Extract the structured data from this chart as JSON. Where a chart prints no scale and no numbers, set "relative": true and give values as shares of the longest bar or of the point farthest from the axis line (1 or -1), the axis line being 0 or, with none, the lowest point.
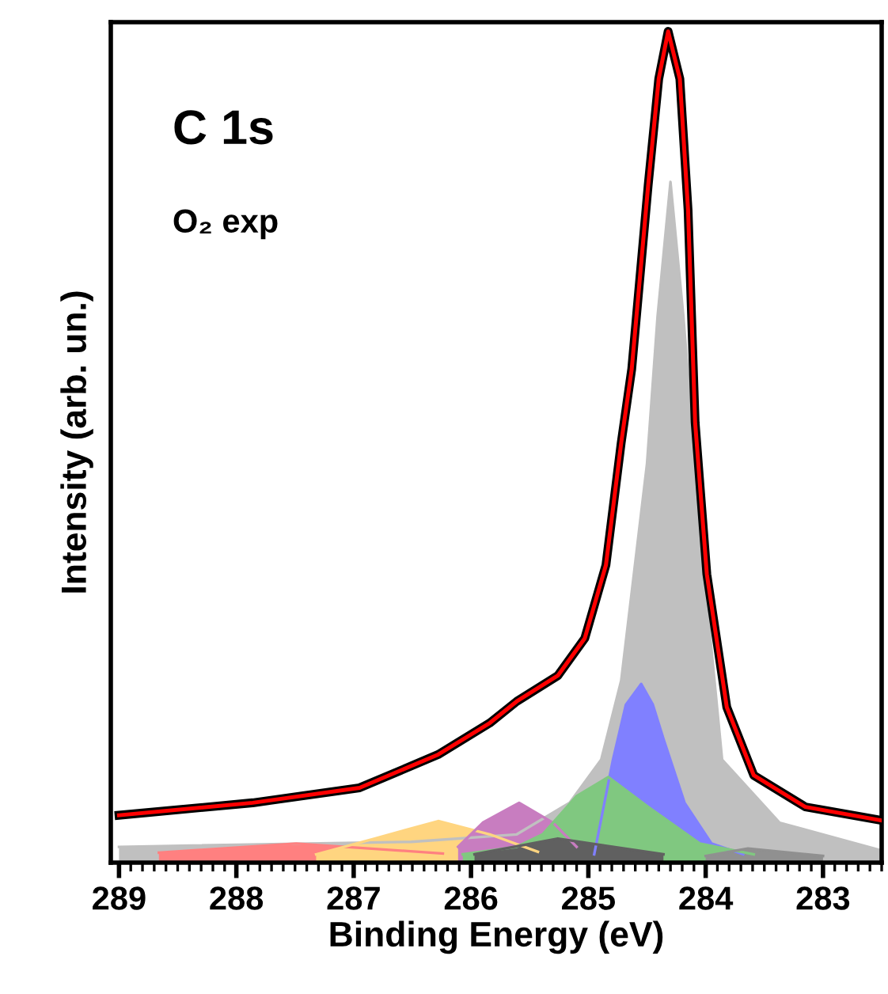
{
  "chart_data": {
    "type": "area",
    "relative": true,
    "xlabel": "Binding Energy (eV)",
    "ylabel": "Intensity (arb. un.)",
    "annotations": [
      "C 1s",
      "O₂ exp"
    ],
    "xlim": [
      289.07,
      282.5
    ],
    "xticks": [
      289,
      288,
      287,
      286,
      285,
      284,
      283
    ],
    "tick_labels": "x",
    "grid": false,
    "legend": false,
    "series": [
      {
        "color": "#c0c0c0",
        "x": [
          289.0,
          286.51,
          285.61,
          285.16,
          284.89,
          284.72,
          284.5,
          284.41,
          284.3,
          284.19,
          284.09,
          283.99,
          283.86,
          283.37,
          282.51
        ],
        "values": [
          0.019,
          0.025,
          0.034,
          0.072,
          0.124,
          0.219,
          0.48,
          0.657,
          0.819,
          0.657,
          0.48,
          0.314,
          0.124,
          0.048,
          0.015
        ]
      },
      {
        "color": "#ff8080",
        "x": [
          288.66,
          287.49,
          286.24
        ],
        "values": [
          0.012,
          0.023,
          0.011
        ]
      },
      {
        "color": "#ffd580",
        "x": [
          287.32,
          286.82,
          286.28,
          285.84,
          285.43
        ],
        "values": [
          0.01,
          0.029,
          0.05,
          0.034,
          0.013
        ]
      },
      {
        "color": "#c87dc0",
        "x": [
          286.11,
          285.9,
          285.59,
          285.3,
          285.1
        ],
        "values": [
          0.019,
          0.048,
          0.072,
          0.048,
          0.019
        ]
      },
      {
        "color": "#8080ff",
        "x": [
          284.95,
          284.79,
          284.68,
          284.55,
          284.45,
          284.36,
          284.18,
          283.95,
          283.68
        ],
        "values": [
          0.01,
          0.124,
          0.19,
          0.215,
          0.19,
          0.149,
          0.072,
          0.023,
          0.01
        ]
      },
      {
        "color": "#80c880",
        "x": [
          286.07,
          285.61,
          285.39,
          285.1,
          284.83,
          284.49,
          284.05,
          283.59
        ],
        "values": [
          0.01,
          0.019,
          0.034,
          0.08,
          0.103,
          0.067,
          0.023,
          0.01
        ]
      },
      {
        "color": "#606060",
        "x": [
          285.97,
          285.26,
          284.36
        ],
        "values": [
          0.01,
          0.029,
          0.01
        ]
      },
      {
        "color": "#909090",
        "x": [
          284.0,
          283.64,
          283.0
        ],
        "values": [
          0.008,
          0.017,
          0.008
        ]
      },
      {
        "type": "line",
        "color": "#000000",
        "x": [
          289.0,
          287.86,
          286.95,
          286.28,
          285.84,
          285.61,
          285.26,
          285.03,
          284.85,
          284.72,
          284.63,
          284.49,
          284.4,
          284.32,
          284.22,
          284.15,
          284.09,
          283.99,
          283.82,
          283.59,
          283.15,
          282.51
        ],
        "values": [
          0.057,
          0.072,
          0.09,
          0.13,
          0.168,
          0.194,
          0.225,
          0.27,
          0.358,
          0.505,
          0.594,
          0.815,
          0.943,
          1.0,
          0.943,
          0.785,
          0.53,
          0.347,
          0.187,
          0.105,
          0.067,
          0.051
        ]
      },
      {
        "type": "line",
        "color": "#ff0000",
        "x": [
          289.0,
          287.86,
          286.95,
          286.28,
          285.84,
          285.61,
          285.26,
          285.03,
          284.85,
          284.72,
          284.63,
          284.49,
          284.4,
          284.32,
          284.22,
          284.15,
          284.09,
          283.99,
          283.82,
          283.59,
          283.15,
          282.51
        ],
        "values": [
          0.057,
          0.072,
          0.09,
          0.13,
          0.168,
          0.194,
          0.225,
          0.27,
          0.358,
          0.505,
          0.594,
          0.815,
          0.943,
          1.0,
          0.943,
          0.785,
          0.53,
          0.347,
          0.187,
          0.105,
          0.067,
          0.051
        ]
      }
    ]
  }
}
